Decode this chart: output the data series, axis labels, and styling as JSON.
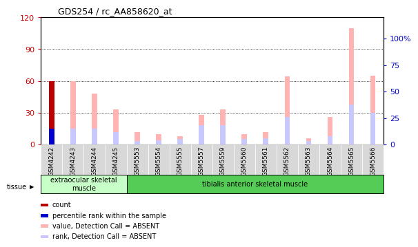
{
  "title": "GDS254 / rc_AA858620_at",
  "categories": [
    "GSM4242",
    "GSM4243",
    "GSM4244",
    "GSM4245",
    "GSM5553",
    "GSM5554",
    "GSM5555",
    "GSM5557",
    "GSM5559",
    "GSM5560",
    "GSM5561",
    "GSM5562",
    "GSM5563",
    "GSM5564",
    "GSM5565",
    "GSM5566"
  ],
  "count_values": [
    60,
    0,
    0,
    0,
    0,
    0,
    0,
    0,
    0,
    0,
    0,
    0,
    0,
    0,
    0,
    0
  ],
  "pct_rank_values": [
    15,
    0,
    0,
    0,
    0,
    0,
    0,
    0,
    0,
    0,
    0,
    0,
    0,
    0,
    0,
    0
  ],
  "absent_value": [
    0,
    60,
    48,
    33,
    12,
    10,
    8,
    28,
    33,
    10,
    12,
    64,
    6,
    26,
    110,
    65
  ],
  "absent_rank": [
    0,
    15,
    15,
    12,
    3,
    4,
    5,
    18,
    18,
    5,
    6,
    26,
    3,
    8,
    38,
    30
  ],
  "left_ylim": [
    0,
    120
  ],
  "left_yticks": [
    0,
    30,
    60,
    90,
    120
  ],
  "right_ylim": [
    0,
    120
  ],
  "right_yticks": [
    0,
    25,
    50,
    75,
    100
  ],
  "right_yticklabels": [
    "0",
    "25",
    "50",
    "75",
    "100%"
  ],
  "tissue_groups": [
    {
      "label": "extraocular skeletal\nmuscle",
      "start": 0,
      "end": 4,
      "color": "#c8ffc8"
    },
    {
      "label": "tibialis anterior skeletal muscle",
      "start": 4,
      "end": 16,
      "color": "#55cc55"
    }
  ],
  "bar_width": 0.25,
  "color_count": "#bb0000",
  "color_pct_rank": "#0000cc",
  "color_absent_value": "#ffb3b3",
  "color_absent_rank": "#c8c8ff",
  "legend_items": [
    {
      "label": "count",
      "color": "#bb0000"
    },
    {
      "label": "percentile rank within the sample",
      "color": "#0000cc"
    },
    {
      "label": "value, Detection Call = ABSENT",
      "color": "#ffb3b3"
    },
    {
      "label": "rank, Detection Call = ABSENT",
      "color": "#c8c8ff"
    }
  ],
  "grid_yticks": [
    30,
    60,
    90
  ],
  "xlabel_fontsize": 6.5,
  "ylabel_left_color": "#cc0000",
  "ylabel_right_color": "#0000cc",
  "bg_plot": "#ffffff",
  "bg_figure": "#ffffff",
  "xtick_bg": "#d8d8d8"
}
